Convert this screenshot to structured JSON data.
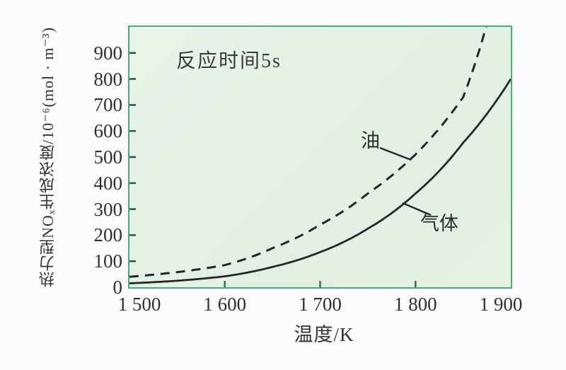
{
  "figure": {
    "annotation": "反应时间5s",
    "xlabel": "温度/K",
    "ylabel": "热力型NOₓ生成浓度/10⁻⁶(mol · m⁻³)",
    "oil_label": "油",
    "gas_label": "气体"
  },
  "chart_data": {
    "type": "line",
    "title": "",
    "annotation": "反应时间5s",
    "xlabel": "温度/K",
    "ylabel": "热力型NOₓ生成浓度/10⁻⁶(mol · m⁻³)",
    "xlim": [
      1500,
      1900
    ],
    "ylim": [
      0,
      1000
    ],
    "x_ticks": [
      1500,
      1600,
      1700,
      1800,
      1900
    ],
    "x_tick_labels": [
      "1 500",
      "1 600",
      "1 700",
      "1 800",
      "1 900"
    ],
    "y_ticks": [
      0,
      100,
      200,
      300,
      400,
      500,
      600,
      700,
      800,
      900
    ],
    "grid": false,
    "legend_position": "inline-labels",
    "series": [
      {
        "name": "油",
        "style": "dashed",
        "x": [
          1500,
          1550,
          1600,
          1650,
          1700,
          1750,
          1800,
          1850,
          1880
        ],
        "values": [
          40,
          58,
          85,
          150,
          240,
          360,
          510,
          730,
          1080
        ]
      },
      {
        "name": "气体",
        "style": "solid",
        "x": [
          1500,
          1550,
          1600,
          1650,
          1700,
          1750,
          1800,
          1850,
          1900
        ],
        "values": [
          15,
          25,
          42,
          78,
          135,
          225,
          360,
          555,
          800
        ]
      }
    ],
    "colors": {
      "plot_background": "#e4f1e4",
      "frame_border": "#4aaa7c",
      "curve": "#262626",
      "tick_mark": "#2f7a52",
      "text": "#2f2f2f"
    }
  }
}
